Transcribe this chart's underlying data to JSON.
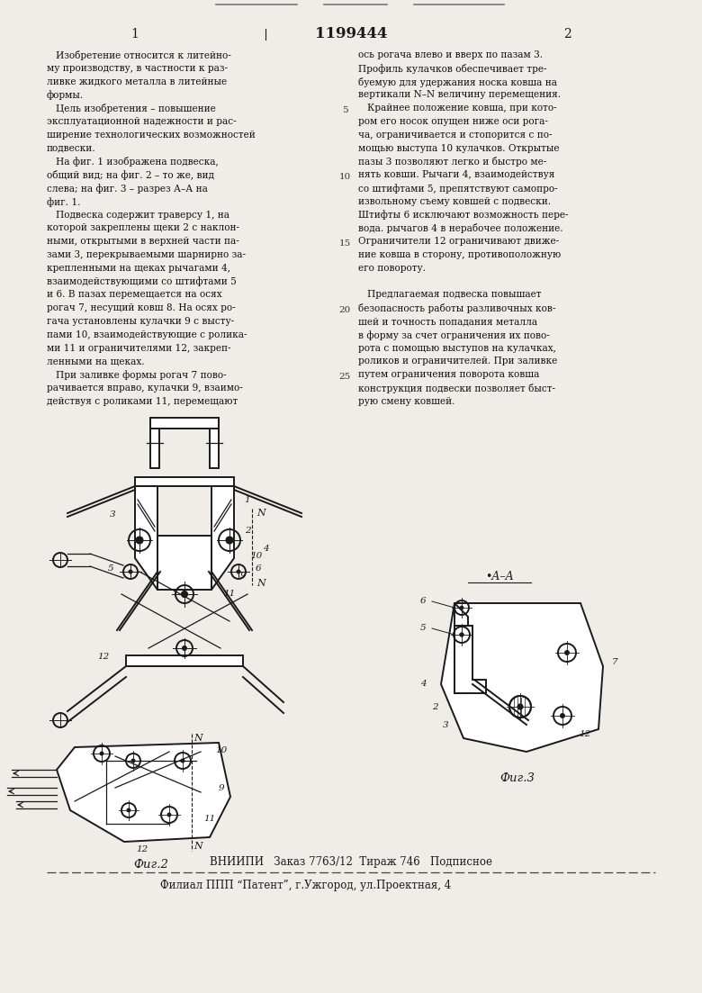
{
  "bg_color": "#f0ede8",
  "page_width": 7.8,
  "page_height": 11.03,
  "patent_number": "1199444",
  "col1_header": "1",
  "col2_header": "2",
  "text_col1": [
    "   Изобретение относится к литейно-",
    "му производству, в частности к раз-",
    "ливке жидкого металла в литейные",
    "формы.",
    "   Цель изобретения – повышение",
    "эксплуатационной надежности и рас-",
    "ширение технологических возможностей",
    "подвески.",
    "   На фиг. 1 изображена подвеска,",
    "общий вид; на фиг. 2 – то же, вид",
    "слева; на фиг. 3 – разрез А–А на",
    "фиг. 1.",
    "   Подвеска содержит траверсу 1, на",
    "которой закреплены щеки 2 с наклон-",
    "ными, открытыми в верхней части па-",
    "зами 3, перекрываемыми шарнирно за-",
    "крепленными на щеках рычагами 4,",
    "взаимодействующими со штифтами 5",
    "и 6. В пазах перемещается на осях",
    "рогач 7, несущий ковш 8. На осях ро-",
    "гача установлены кулачки 9 с высту-",
    "пами 10, взаимодействующие с ролика-",
    "ми 11 и ограничителями 12, закреп-",
    "ленными на щеках.",
    "   При заливке формы рогач 7 пово-",
    "рачивается вправо, кулачки 9, взаимо-",
    "действуя с роликами 11, перемещают"
  ],
  "text_col2": [
    "ось рогача влево и вверх по пазам 3.",
    "Профиль кулачков обеспечивает тре-",
    "буемую для удержания носка ковша на",
    "вертикали N–N величину перемещения.",
    "   Крайнее положение ковша, при кото-",
    "ром его носок опущен ниже оси рога-",
    "ча, ограничивается и стопорится с по-",
    "мощью выступа 10 кулачков. Открытые",
    "пазы 3 позволяют легко и быстро ме-",
    "нять ковши. Рычаги 4, взаимодействуя",
    "со штифтами 5, препятствуют самопро-",
    "извольному съему ковшей с подвески.",
    "Штифты 6 исключают возможность пере-",
    "вода. рычагов 4 в нерабочее положение.",
    "Ограничители 12 ограничивают движе-",
    "ние ковша в сторону, противоположную",
    "его повороту.",
    "",
    "   Предлагаемая подвеска повышает",
    "безопасность работы разливочных ков-",
    "шей и точность попадания металла",
    "в форму за счет ограничения их пово-",
    "рота с помощью выступов на кулачках,",
    "роликов и ограничителей. При заливке",
    "путем ограничения поворота ковша",
    "конструкция подвески позволяет быст-",
    "рую смену ковшей."
  ],
  "line_numbers": [
    5,
    10,
    15,
    20,
    25
  ],
  "fig2_caption": "Фиг.2",
  "fig3_caption": "Фиг.3",
  "footer_line1": "ВНИИПИ   Заказ 7763/12  Тираж 746   Подписное",
  "footer_line2": "Филиал ППП “Патент”, г.Ужгород, ул.Проектная, 4",
  "section_label": "•A–A"
}
